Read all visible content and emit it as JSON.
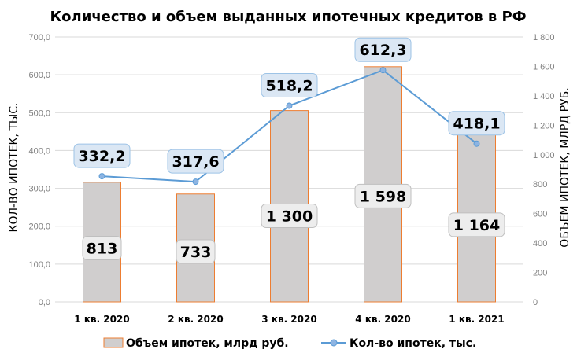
{
  "chart_data": {
    "type": "bar",
    "title": "Количество и объем выданных ипотечных кредитов в РФ",
    "categories": [
      "1 кв. 2020",
      "2 кв. 2020",
      "3 кв. 2020",
      "4 кв. 2020",
      "1 кв. 2021"
    ],
    "series": [
      {
        "name": "Объем ипотек, млрд руб.",
        "type": "bar",
        "axis": "right",
        "values": [
          813,
          733,
          1300,
          1598,
          1164
        ],
        "labels": [
          "813",
          "733",
          "1 300",
          "1 598",
          "1 164"
        ],
        "color": "#d0cece",
        "edge_color": "#ed7d31"
      },
      {
        "name": "Кол-во ипотек, тыс.",
        "type": "line",
        "axis": "left",
        "values": [
          332.2,
          317.6,
          518.2,
          612.3,
          418.1
        ],
        "labels": [
          "332,2",
          "317,6",
          "518,2",
          "612,3",
          "418,1"
        ],
        "color": "#5b9bd5"
      }
    ],
    "ylabel": "КОЛ-ВО ИПОТЕК, ТЫС.",
    "ylabel_right": "ОБЪЕМ ИПОТЕК, МЛРД РУБ.",
    "ylim": [
      0,
      700
    ],
    "ylim_right": [
      0,
      1800
    ],
    "yticks": [
      "0,0",
      "100,0",
      "200,0",
      "300,0",
      "400,0",
      "500,0",
      "600,0",
      "700,0"
    ],
    "yticks_right": [
      "0",
      "200",
      "400",
      "600",
      "800",
      "1 000",
      "1 200",
      "1 400",
      "1 600",
      "1 800"
    ],
    "grid": true,
    "legend_position": "bottom"
  }
}
